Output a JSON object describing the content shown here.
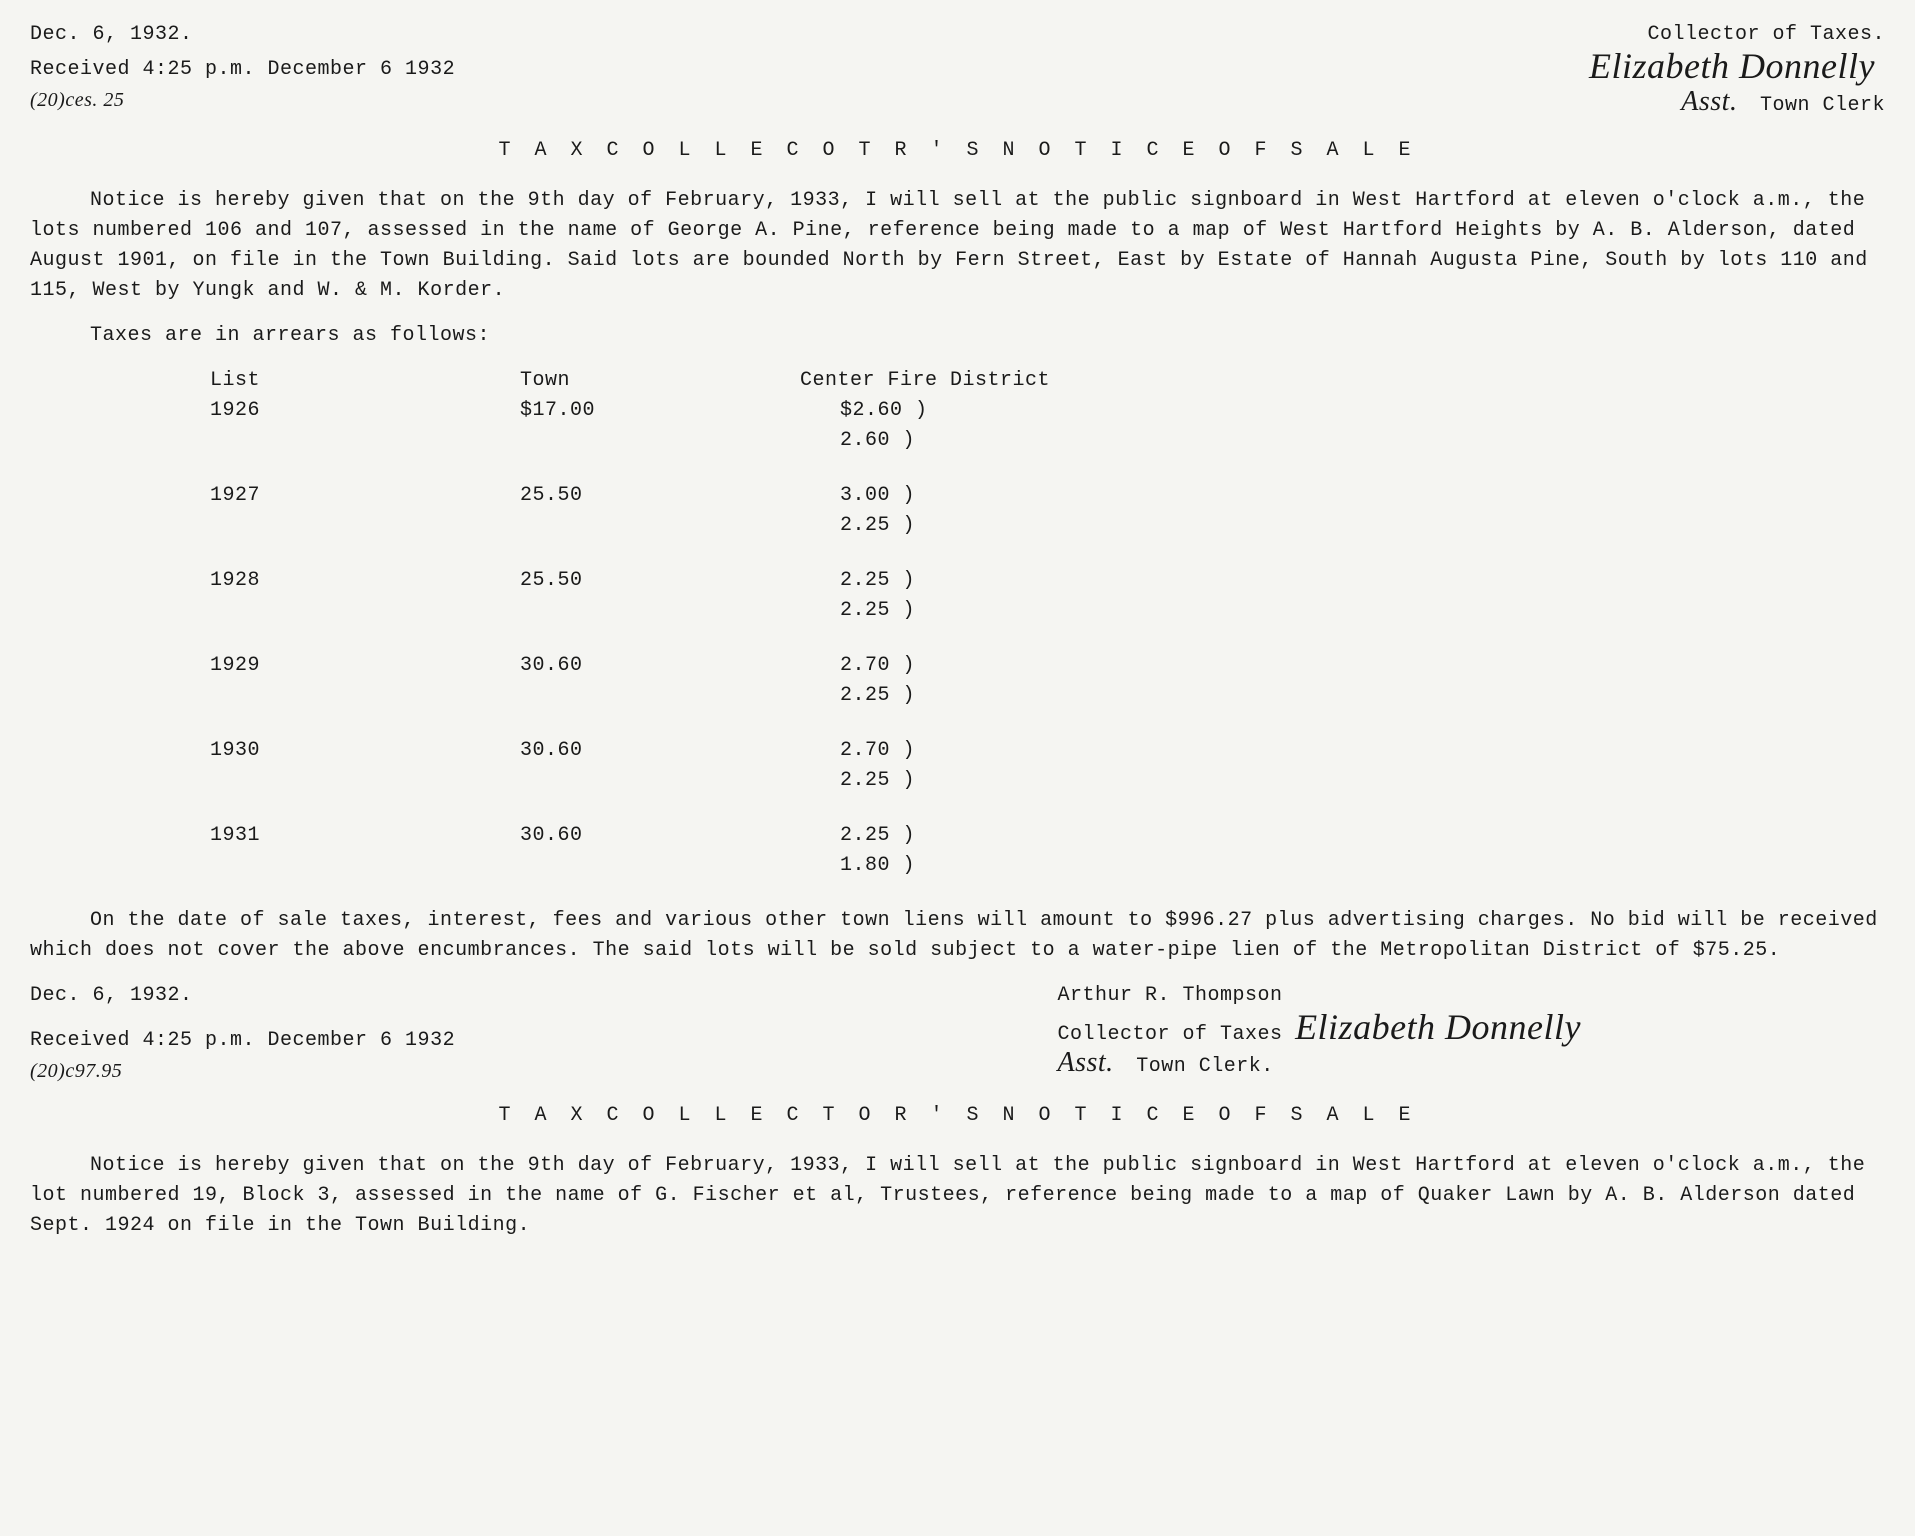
{
  "notice1": {
    "header_date_partial": "Dec. 6, 1932.",
    "collector_line": "Collector of Taxes.",
    "signature_name": "Elizabeth Donnelly",
    "signature_sub": "Asst.",
    "clerk_label": "Town Clerk",
    "received_line": "Received  4:25 p.m.  December 6  1932",
    "receipt_mark": "(20)ces. 25",
    "title": "T A X   C O L L E C O T R ' S   N O T I C E   O F   S A L E",
    "paragraph": "Notice is hereby given that on the 9th day of February, 1933, I will sell at the public signboard in West Hartford at eleven o'clock a.m., the lots numbered 106 and 107, assessed in the name of George A. Pine, reference being made to a map of West Hartford Heights by A. B. Alderson, dated August 1901, on file in the Town Building. Said lots are bounded North by Fern Street, East by Estate of Hannah Augusta Pine, South by lots 110 and 115, West by Yungk and W. & M. Korder.",
    "arrears_intro": "Taxes are in arrears as follows:",
    "table": {
      "col_list": "List",
      "col_town": "Town",
      "col_fire": "Center Fire District",
      "rows": [
        {
          "year": "1926",
          "town": "$17.00",
          "fire1": "$2.60 )",
          "fire2": "2.60 )"
        },
        {
          "year": "1927",
          "town": "25.50",
          "fire1": "3.00 )",
          "fire2": "2.25 )"
        },
        {
          "year": "1928",
          "town": "25.50",
          "fire1": "2.25 )",
          "fire2": "2.25 )"
        },
        {
          "year": "1929",
          "town": "30.60",
          "fire1": "2.70 )",
          "fire2": "2.25 )"
        },
        {
          "year": "1930",
          "town": "30.60",
          "fire1": "2.70 )",
          "fire2": "2.25 )"
        },
        {
          "year": "1931",
          "town": "30.60",
          "fire1": "2.25 )",
          "fire2": "1.80 )"
        }
      ]
    },
    "closing_paragraph": "On the date of sale taxes, interest, fees and various other town liens will amount to $996.27 plus advertising charges. No bid will be received which does not cover the above encumbrances. The said lots will be sold subject to a water-pipe lien of the Metropolitan District of $75.25.",
    "closing_date": "Dec. 6, 1932.",
    "closing_name": "Arthur R. Thompson",
    "closing_collector": "Collector of Taxes",
    "closing_signature": "Elizabeth Donnelly",
    "closing_signature_sub": "Asst.",
    "closing_clerk": "Town Clerk.",
    "closing_received": "Received  4:25 p.m.  December 6  1932",
    "closing_receipt_mark": "(20)c97.95"
  },
  "notice2": {
    "title": "T A X   C O L L E C T O R ' S   N O T I C E   O F   S A L E",
    "paragraph": "Notice is hereby given that on the 9th day of February, 1933, I will sell at the public signboard in West Hartford at eleven o'clock a.m., the lot numbered 19, Block 3, assessed in the name of G. Fischer et al, Trustees, reference being made to a map of Quaker Lawn  by A. B. Alderson  dated Sept.  1924  on file in the Town Building."
  }
}
